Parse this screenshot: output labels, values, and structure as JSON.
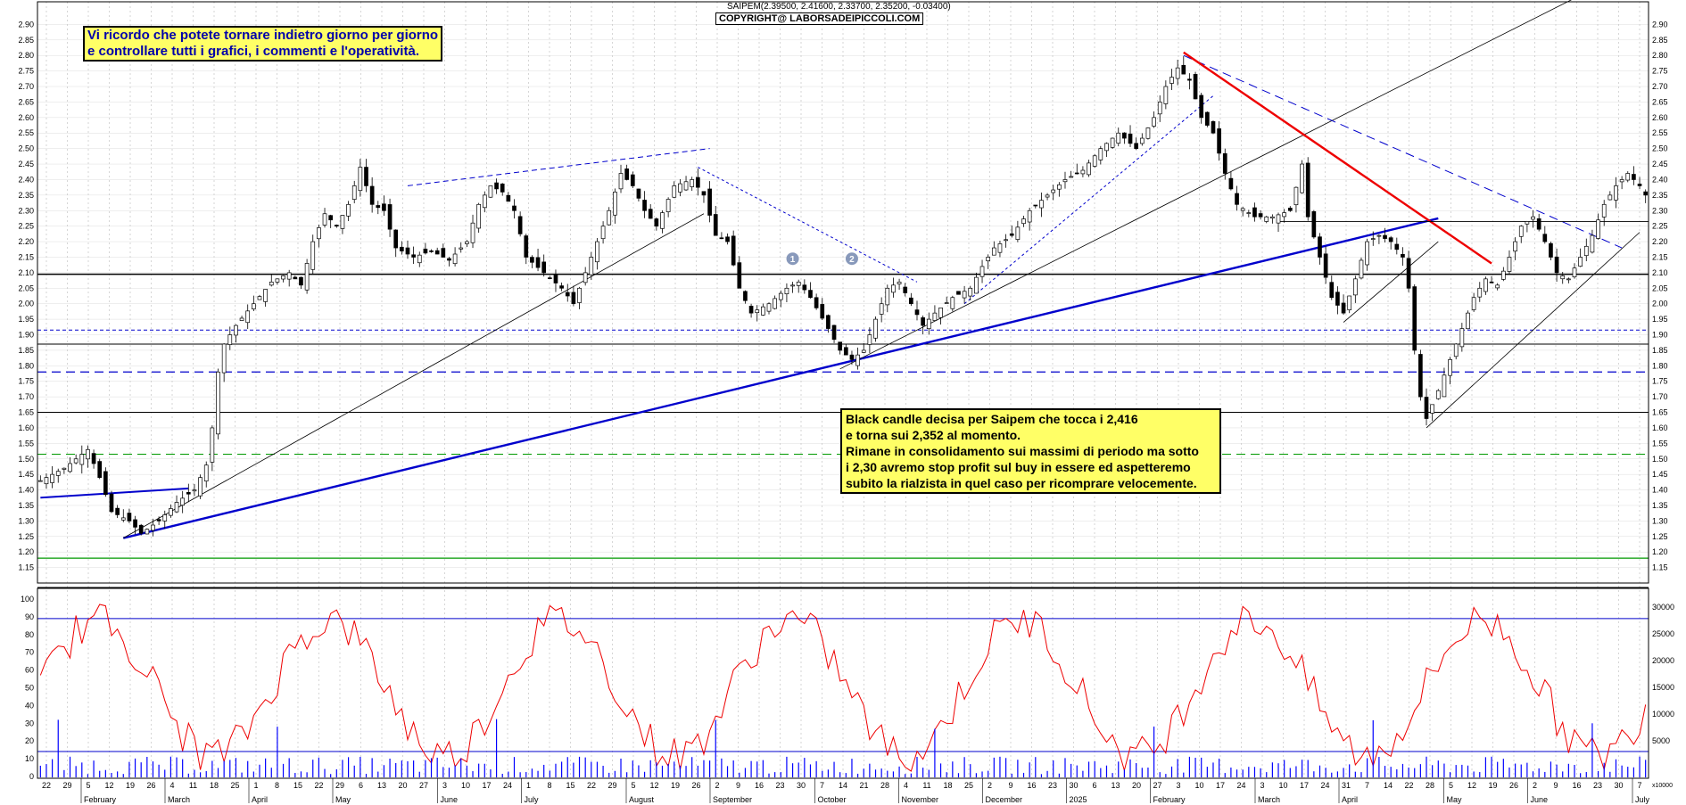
{
  "header": {
    "ticker_line": "SAIPEM(2.39500, 2.41600, 2.33700, 2.35200, -0.03400)",
    "copyright": "COPYRIGHT@ LABORSADEIPICCOLI.COM"
  },
  "note_top": {
    "line1": "Vi ricordo che potete tornare indietro giorno per giorno",
    "line2": "e controllare tutti i grafici, i commenti e l'operatività."
  },
  "note_comment": {
    "line1": "Black candle decisa per Saipem che tocca i 2,416",
    "line2": "e torna sui 2,352 al momento.",
    "line3": "Rimane in consolidamento sui massimi di periodo ma sotto",
    "line4": "i 2,30 avremo stop profit sul buy in essere ed aspetteremo",
    "line5": "subito la rialzista in quel caso per ricomprare velocemente."
  },
  "markers": [
    "1",
    "2"
  ],
  "colors": {
    "price_line": "#000000",
    "trend_blue": "#0000cc",
    "trend_red": "#ee0000",
    "oscillator": "#ee0000",
    "support_green": "#009900",
    "volume": "#0000ff"
  },
  "chart_data": [
    {
      "type": "candlestick",
      "title": "SAIPEM",
      "ylim": [
        1.1,
        2.95
      ],
      "y_ticks": [
        "2.90",
        "2.85",
        "2.80",
        "2.75",
        "2.70",
        "2.65",
        "2.60",
        "2.55",
        "2.50",
        "2.45",
        "2.40",
        "2.35",
        "2.30",
        "2.25",
        "2.20",
        "2.15",
        "2.10",
        "2.05",
        "2.00",
        "1.95",
        "1.90",
        "1.85",
        "1.80",
        "1.75",
        "1.70",
        "1.65",
        "1.60",
        "1.55",
        "1.50",
        "1.45",
        "1.40",
        "1.35",
        "1.30",
        "1.25",
        "1.20",
        "1.15"
      ],
      "close_path": [
        [
          0,
          1.43
        ],
        [
          4,
          1.47
        ],
        [
          8,
          1.53
        ],
        [
          10,
          1.44
        ],
        [
          12,
          1.33
        ],
        [
          15,
          1.3
        ],
        [
          17,
          1.26
        ],
        [
          20,
          1.3
        ],
        [
          23,
          1.36
        ],
        [
          26,
          1.4
        ],
        [
          28,
          1.48
        ],
        [
          29,
          1.6
        ],
        [
          30,
          1.78
        ],
        [
          31,
          1.87
        ],
        [
          33,
          1.93
        ],
        [
          36,
          2.0
        ],
        [
          39,
          2.07
        ],
        [
          42,
          2.1
        ],
        [
          44,
          2.06
        ],
        [
          46,
          2.2
        ],
        [
          48,
          2.29
        ],
        [
          50,
          2.25
        ],
        [
          52,
          2.32
        ],
        [
          54,
          2.44
        ],
        [
          56,
          2.32
        ],
        [
          58,
          2.3
        ],
        [
          60,
          2.18
        ],
        [
          63,
          2.15
        ],
        [
          66,
          2.17
        ],
        [
          69,
          2.14
        ],
        [
          72,
          2.2
        ],
        [
          74,
          2.32
        ],
        [
          76,
          2.38
        ],
        [
          78,
          2.36
        ],
        [
          80,
          2.3
        ],
        [
          82,
          2.15
        ],
        [
          85,
          2.1
        ],
        [
          88,
          2.05
        ],
        [
          90,
          2.0
        ],
        [
          93,
          2.15
        ],
        [
          96,
          2.3
        ],
        [
          98,
          2.42
        ],
        [
          100,
          2.38
        ],
        [
          102,
          2.3
        ],
        [
          104,
          2.25
        ],
        [
          107,
          2.38
        ],
        [
          110,
          2.4
        ],
        [
          112,
          2.35
        ],
        [
          114,
          2.22
        ],
        [
          116,
          2.2
        ],
        [
          118,
          2.05
        ],
        [
          120,
          1.97
        ],
        [
          123,
          2.0
        ],
        [
          126,
          2.05
        ],
        [
          128,
          2.07
        ],
        [
          130,
          2.02
        ],
        [
          133,
          1.92
        ],
        [
          135,
          1.85
        ],
        [
          137,
          1.82
        ],
        [
          139,
          1.85
        ],
        [
          141,
          1.95
        ],
        [
          143,
          2.05
        ],
        [
          145,
          2.07
        ],
        [
          147,
          2.0
        ],
        [
          149,
          1.93
        ],
        [
          151,
          1.97
        ],
        [
          154,
          2.02
        ],
        [
          157,
          2.05
        ],
        [
          159,
          2.12
        ],
        [
          161,
          2.18
        ],
        [
          164,
          2.22
        ],
        [
          167,
          2.3
        ],
        [
          170,
          2.35
        ],
        [
          173,
          2.4
        ],
        [
          176,
          2.43
        ],
        [
          179,
          2.5
        ],
        [
          182,
          2.55
        ],
        [
          185,
          2.5
        ],
        [
          188,
          2.6
        ],
        [
          190,
          2.7
        ],
        [
          192,
          2.76
        ],
        [
          194,
          2.72
        ],
        [
          196,
          2.6
        ],
        [
          198,
          2.55
        ],
        [
          200,
          2.42
        ],
        [
          202,
          2.32
        ],
        [
          205,
          2.28
        ],
        [
          208,
          2.28
        ],
        [
          211,
          2.3
        ],
        [
          213,
          2.45
        ],
        [
          214,
          2.28
        ],
        [
          216,
          2.15
        ],
        [
          218,
          2.02
        ],
        [
          220,
          1.97
        ],
        [
          222,
          2.08
        ],
        [
          224,
          2.2
        ],
        [
          226,
          2.22
        ],
        [
          228,
          2.2
        ],
        [
          230,
          2.15
        ],
        [
          231,
          2.05
        ],
        [
          232,
          1.85
        ],
        [
          233,
          1.7
        ],
        [
          234,
          1.63
        ],
        [
          236,
          1.72
        ],
        [
          238,
          1.82
        ],
        [
          240,
          1.92
        ],
        [
          242,
          2.02
        ],
        [
          244,
          2.08
        ],
        [
          246,
          2.06
        ],
        [
          248,
          2.15
        ],
        [
          250,
          2.25
        ],
        [
          252,
          2.28
        ],
        [
          254,
          2.2
        ],
        [
          256,
          2.1
        ],
        [
          258,
          2.08
        ],
        [
          260,
          2.15
        ],
        [
          262,
          2.22
        ],
        [
          264,
          2.32
        ],
        [
          266,
          2.38
        ],
        [
          268,
          2.42
        ],
        [
          270,
          2.38
        ],
        [
          271,
          2.35
        ]
      ],
      "horizontal_levels": [
        2.095,
        1.915,
        1.87,
        1.78,
        1.65,
        1.515,
        1.18
      ],
      "x_day_ticks": [
        "22",
        "29",
        "5",
        "12",
        "19",
        "26",
        "4",
        "11",
        "18",
        "25",
        "1",
        "8",
        "15",
        "22",
        "29",
        "6",
        "13",
        "20",
        "27",
        "3",
        "10",
        "17",
        "24",
        "1",
        "8",
        "15",
        "22",
        "29",
        "5",
        "12",
        "19",
        "26",
        "2",
        "9",
        "16",
        "23",
        "30",
        "7",
        "14",
        "21",
        "28",
        "4",
        "11",
        "18",
        "25",
        "2",
        "9",
        "16",
        "23",
        "30",
        "6",
        "13",
        "20",
        "27",
        "3",
        "10",
        "17",
        "24",
        "3",
        "10",
        "17",
        "24",
        "31",
        "7",
        "14",
        "22",
        "28",
        "5",
        "12",
        "19",
        "26",
        "2",
        "9",
        "16",
        "23",
        "30",
        "7"
      ],
      "x_month_labels": [
        "February",
        "March",
        "April",
        "May",
        "June",
        "July",
        "August",
        "September",
        "October",
        "November",
        "December",
        "2025",
        "February",
        "March",
        "April",
        "May",
        "June",
        "July"
      ]
    },
    {
      "type": "line",
      "title": "",
      "ylim": [
        0,
        100
      ],
      "y_ticks": [
        "100",
        "90",
        "80",
        "70",
        "60",
        "50",
        "40",
        "30",
        "20",
        "10",
        "0"
      ],
      "reference_line": 89,
      "volume_ticks": [
        "30000",
        "25000",
        "20000",
        "15000",
        "10000",
        "5000"
      ],
      "volume_unit": "x10000",
      "volume_reference": 5000
    }
  ]
}
